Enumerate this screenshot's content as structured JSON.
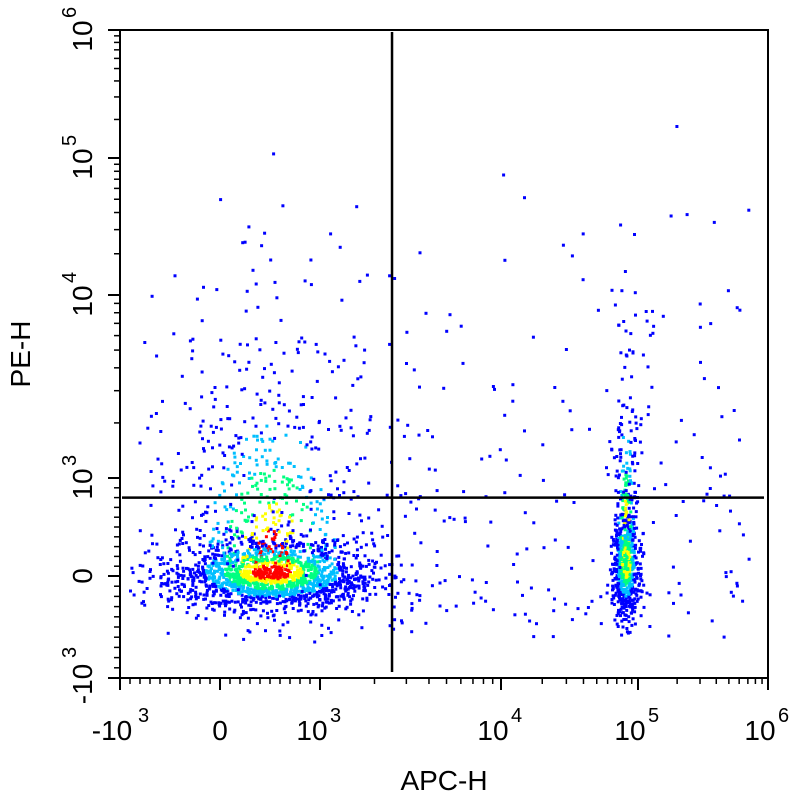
{
  "chart_data": {
    "type": "scatter",
    "title": "",
    "xlabel": "APC-H",
    "ylabel": "PE-H",
    "x_scale": "biexponential",
    "y_scale": "biexponential",
    "xlim": [
      -1000,
      1000000
    ],
    "ylim": [
      -1000,
      1000000
    ],
    "x_ticks": [
      {
        "value": -1000,
        "label": "-10",
        "exp": "3"
      },
      {
        "value": 0,
        "label": "0",
        "exp": ""
      },
      {
        "value": 1000,
        "label": "10",
        "exp": "3"
      },
      {
        "value": 10000,
        "label": "10",
        "exp": "4"
      },
      {
        "value": 100000,
        "label": "10",
        "exp": "5"
      },
      {
        "value": 1000000,
        "label": "10",
        "exp": "6"
      }
    ],
    "y_ticks": [
      {
        "value": -1000,
        "label": "-10",
        "exp": "3"
      },
      {
        "value": 0,
        "label": "0",
        "exp": ""
      },
      {
        "value": 1000,
        "label": "10",
        "exp": "3"
      },
      {
        "value": 10000,
        "label": "10",
        "exp": "4"
      },
      {
        "value": 100000,
        "label": "10",
        "exp": "5"
      },
      {
        "value": 1000000,
        "label": "10",
        "exp": "6"
      }
    ],
    "gates": {
      "vertical_x": 2500,
      "horizontal_y": 800
    },
    "density_colors": [
      "#0000ff",
      "#00bfff",
      "#00ff80",
      "#ffff00",
      "#ff0000"
    ],
    "clusters": [
      {
        "name": "",
        "x_center": 500,
        "y_center": 50,
        "x_spread": 0.55,
        "y_spread": 0.55,
        "count": 2200
      },
      {
        "name": "",
        "x_center": 80000,
        "y_center": 150,
        "x_spread": 0.18,
        "y_spread": 0.7,
        "count": 900
      }
    ],
    "grid": false,
    "legend": "none"
  }
}
